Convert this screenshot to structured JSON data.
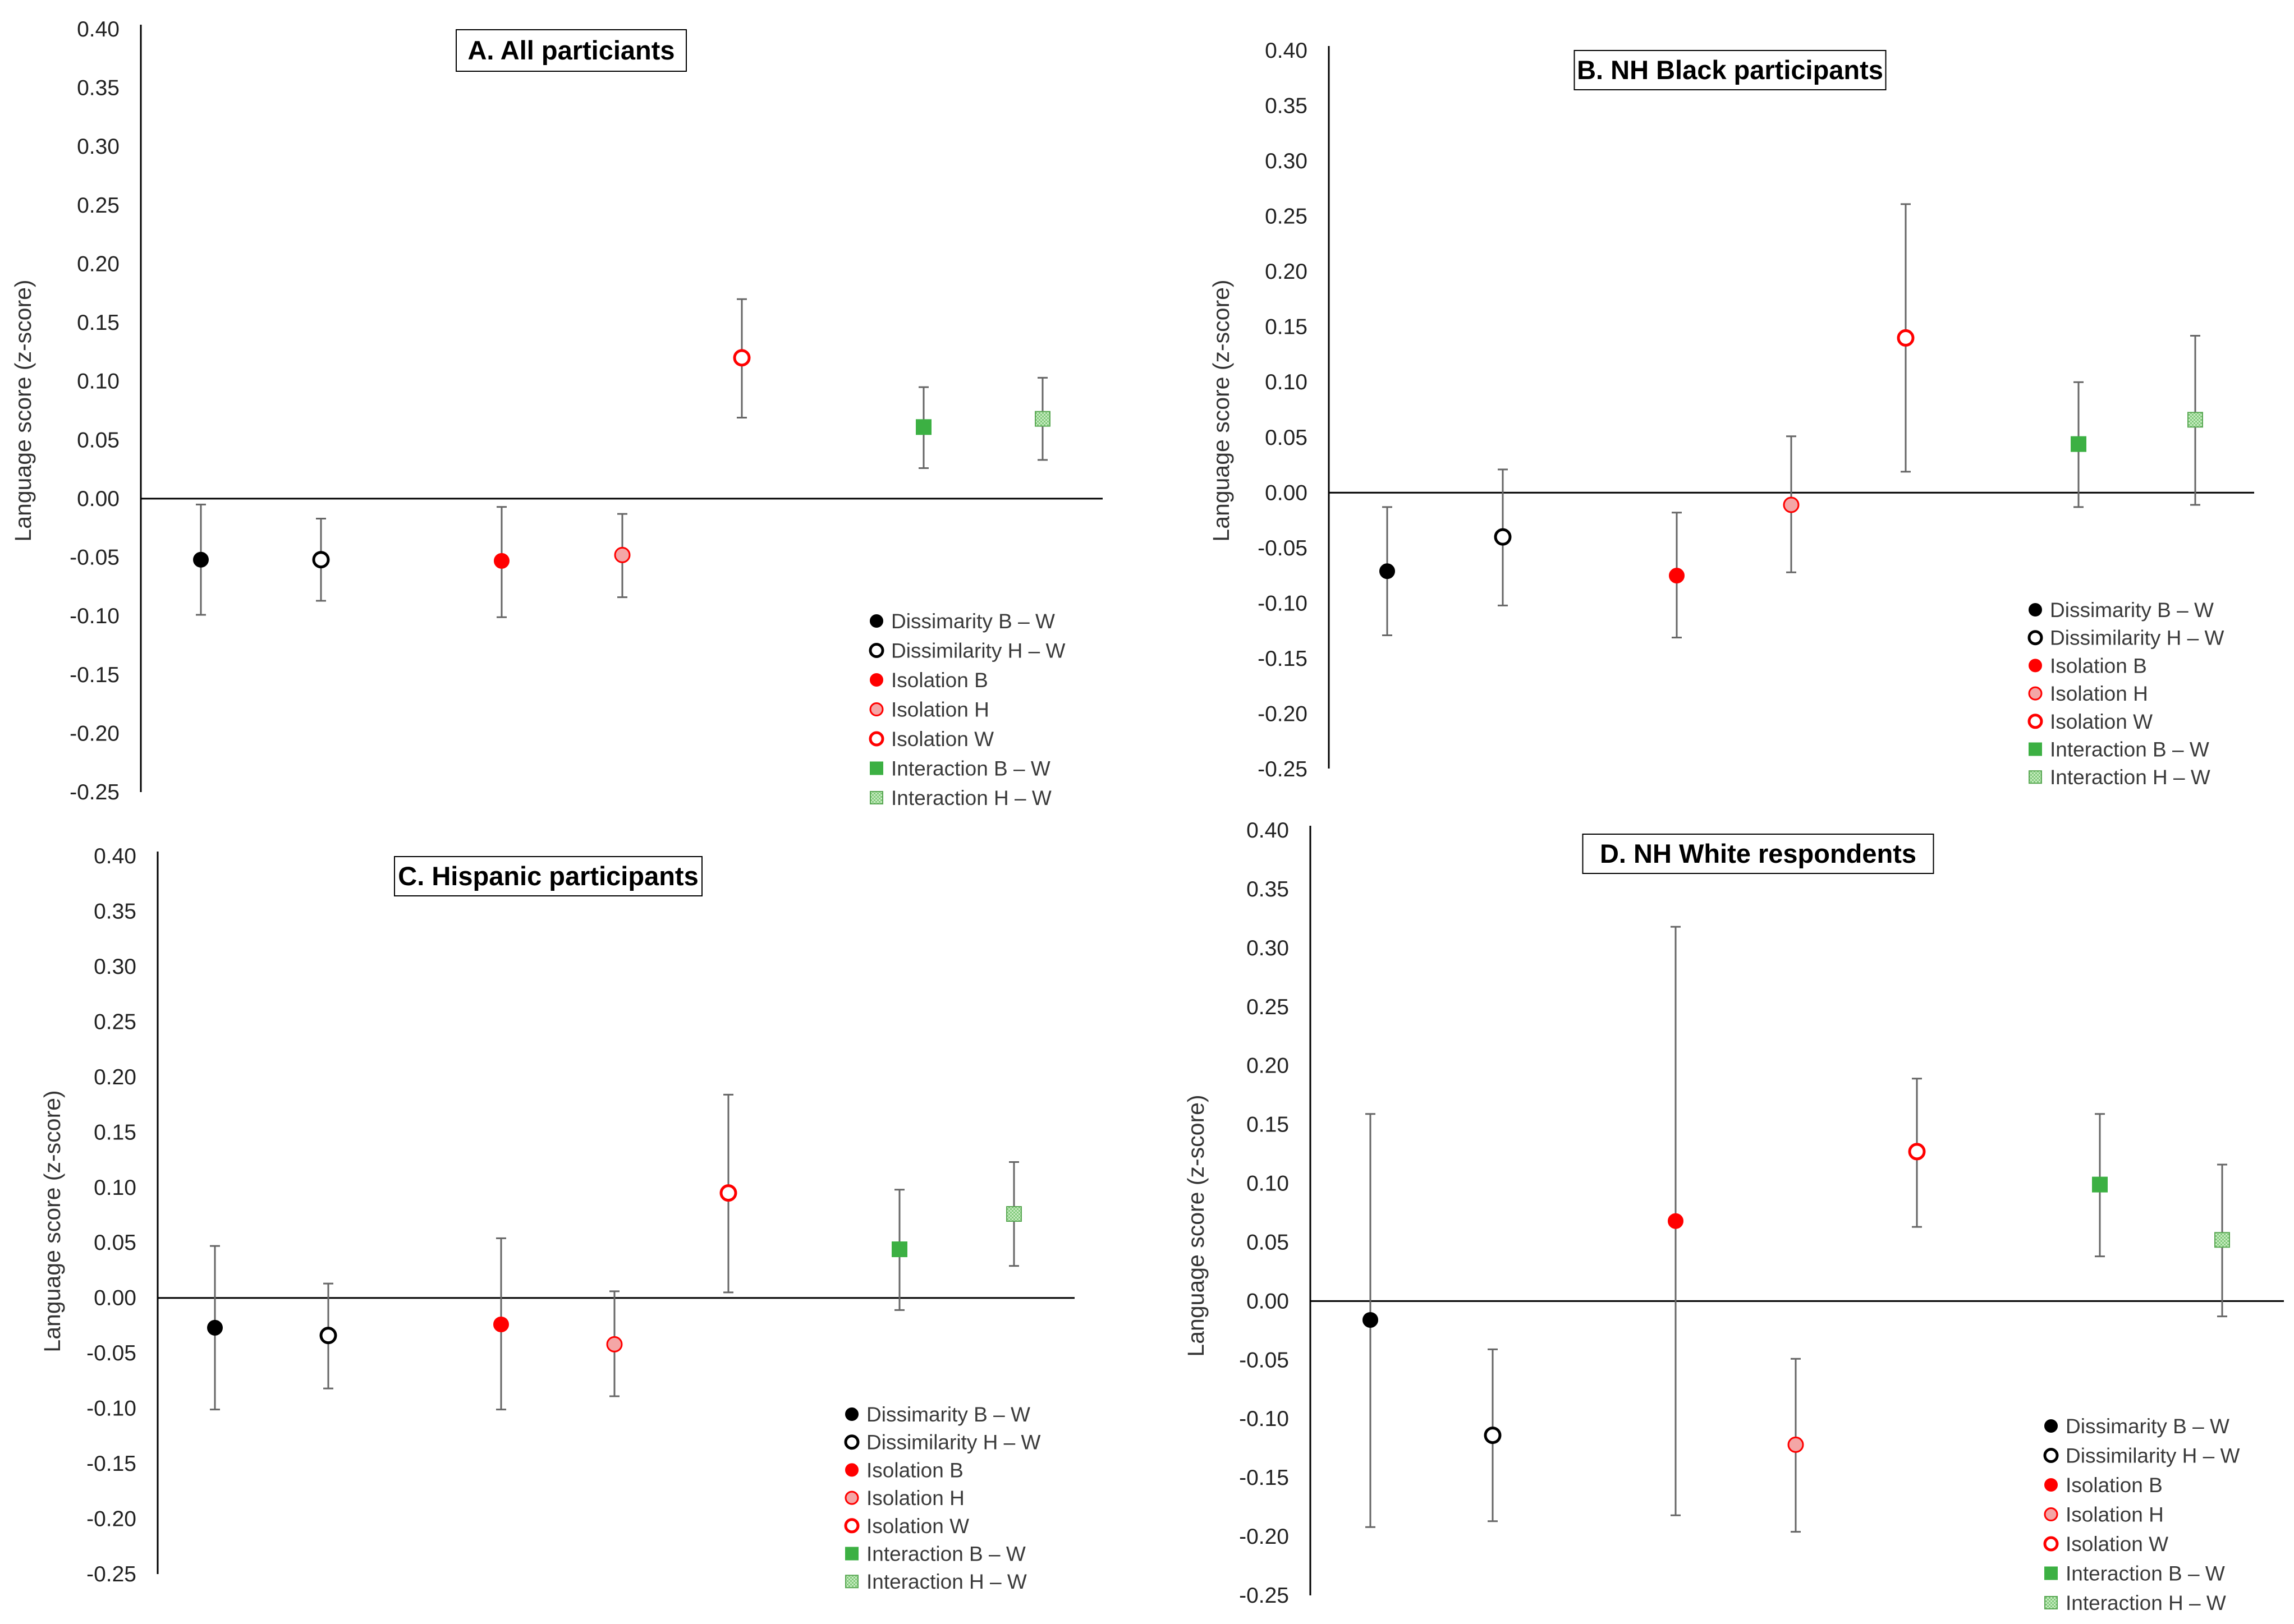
{
  "colors": {
    "black": "#000000",
    "red": "#ff0000",
    "pink": "#f4a6a6",
    "green": "#3cb043",
    "lightgreen": "#a9dca0",
    "errorbar": "#666666"
  },
  "legend_labels": [
    "Dissimarity B – W",
    "Dissimilarity H – W",
    "Isolation B",
    "Isolation H",
    "Isolation W",
    "Interaction B – W",
    "Interaction H – W"
  ],
  "chart_data": [
    {
      "type": "scatter",
      "panel": "A",
      "title": "A. All particiants",
      "ylabel": "Language score (z-score)",
      "ylim": [
        -0.25,
        0.4
      ],
      "yticks": [
        "0.40",
        "0.35",
        "0.30",
        "0.25",
        "0.20",
        "0.15",
        "0.10",
        "0.05",
        "0.00",
        "-0.05",
        "-0.10",
        "-0.15",
        "-0.20",
        "-0.25"
      ],
      "series": [
        {
          "name": "Dissimarity B – W",
          "value": -0.052,
          "low": -0.099,
          "high": -0.005
        },
        {
          "name": "Dissimilarity H – W",
          "value": -0.052,
          "low": -0.087,
          "high": -0.017
        },
        {
          "name": "Isolation B",
          "value": -0.053,
          "low": -0.101,
          "high": -0.007
        },
        {
          "name": "Isolation H",
          "value": -0.048,
          "low": -0.084,
          "high": -0.013
        },
        {
          "name": "Isolation W",
          "value": 0.12,
          "low": 0.069,
          "high": 0.17
        },
        {
          "name": "Interaction B – W",
          "value": 0.061,
          "low": 0.026,
          "high": 0.095
        },
        {
          "name": "Interaction H – W",
          "value": 0.068,
          "low": 0.033,
          "high": 0.103
        }
      ]
    },
    {
      "type": "scatter",
      "panel": "B",
      "title": "B. NH Black participants",
      "ylabel": "Language score (z-score)",
      "ylim": [
        -0.25,
        0.4
      ],
      "yticks": [
        "0.40",
        "0.35",
        "0.30",
        "0.25",
        "0.20",
        "0.15",
        "0.10",
        "0.05",
        "0.00",
        "-0.05",
        "-0.10",
        "-0.15",
        "-0.20",
        "-0.25"
      ],
      "series": [
        {
          "name": "Dissimarity B – W",
          "value": -0.071,
          "low": -0.129,
          "high": -0.013
        },
        {
          "name": "Dissimilarity H – W",
          "value": -0.04,
          "low": -0.102,
          "high": 0.021
        },
        {
          "name": "Isolation B",
          "value": -0.075,
          "low": -0.131,
          "high": -0.018
        },
        {
          "name": "Isolation H",
          "value": -0.011,
          "low": -0.072,
          "high": 0.051
        },
        {
          "name": "Isolation W",
          "value": 0.14,
          "low": 0.019,
          "high": 0.261
        },
        {
          "name": "Interaction B – W",
          "value": 0.044,
          "low": -0.013,
          "high": 0.1
        },
        {
          "name": "Interaction H – W",
          "value": 0.066,
          "low": -0.011,
          "high": 0.142
        }
      ]
    },
    {
      "type": "scatter",
      "panel": "C",
      "title": "C. Hispanic participants",
      "ylabel": "Language score (z-score)",
      "ylim": [
        -0.25,
        0.4
      ],
      "yticks": [
        "0.40",
        "0.35",
        "0.30",
        "0.25",
        "0.20",
        "0.15",
        "0.10",
        "0.05",
        "0.00",
        "-0.05",
        "-0.10",
        "-0.15",
        "-0.20",
        "-0.25"
      ],
      "series": [
        {
          "name": "Dissimarity B – W",
          "value": -0.027,
          "low": -0.101,
          "high": 0.047
        },
        {
          "name": "Dissimilarity H – W",
          "value": -0.034,
          "low": -0.082,
          "high": 0.013
        },
        {
          "name": "Isolation B",
          "value": -0.024,
          "low": -0.101,
          "high": 0.054
        },
        {
          "name": "Isolation H",
          "value": -0.042,
          "low": -0.089,
          "high": 0.006
        },
        {
          "name": "Isolation W",
          "value": 0.095,
          "low": 0.005,
          "high": 0.184
        },
        {
          "name": "Interaction B – W",
          "value": 0.044,
          "low": -0.011,
          "high": 0.098
        },
        {
          "name": "Interaction H – W",
          "value": 0.076,
          "low": 0.029,
          "high": 0.123
        }
      ]
    },
    {
      "type": "scatter",
      "panel": "D",
      "title": "D. NH White respondents",
      "ylabel": "Language score (z-score)",
      "ylim": [
        -0.25,
        0.4
      ],
      "yticks": [
        "0.40",
        "0.35",
        "0.30",
        "0.25",
        "0.20",
        "0.15",
        "0.10",
        "0.05",
        "0.00",
        "-0.05",
        "-0.10",
        "-0.15",
        "-0.20",
        "-0.25"
      ],
      "series": [
        {
          "name": "Dissimarity B – W",
          "value": -0.016,
          "low": -0.192,
          "high": 0.159
        },
        {
          "name": "Dissimilarity H – W",
          "value": -0.114,
          "low": -0.187,
          "high": -0.041
        },
        {
          "name": "Isolation B",
          "value": 0.068,
          "low": -0.182,
          "high": 0.318
        },
        {
          "name": "Isolation H",
          "value": -0.122,
          "low": -0.196,
          "high": -0.049
        },
        {
          "name": "Isolation W",
          "value": 0.127,
          "low": 0.063,
          "high": 0.189
        },
        {
          "name": "Interaction B – W",
          "value": 0.099,
          "low": 0.038,
          "high": 0.159
        },
        {
          "name": "Interaction H – W",
          "value": 0.052,
          "low": -0.013,
          "high": 0.116
        }
      ]
    }
  ]
}
